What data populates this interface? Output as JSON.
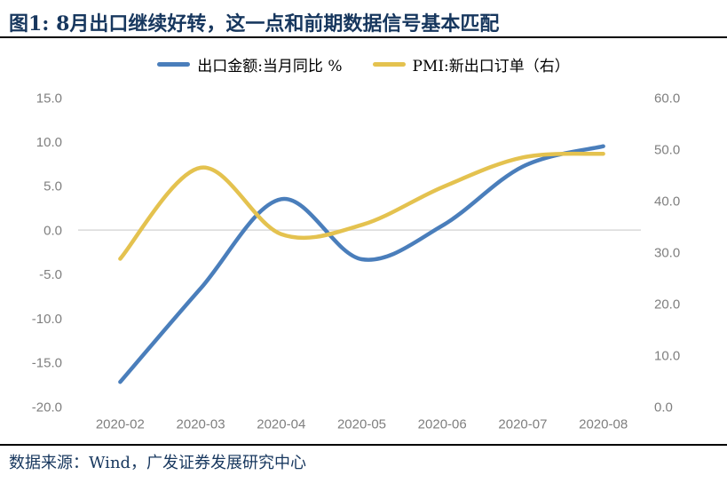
{
  "chart_data": {
    "type": "line",
    "title": "图1: 8月出口继续好转，这一点和前期数据信号基本匹配",
    "categories": [
      "2020-02",
      "2020-03",
      "2020-04",
      "2020-05",
      "2020-06",
      "2020-07",
      "2020-08"
    ],
    "series": [
      {
        "name": "出口金额:当月同比 %",
        "axis": "left",
        "color": "#4A7EBB",
        "values": [
          -17.2,
          -6.6,
          3.5,
          -3.3,
          0.5,
          7.2,
          9.5
        ]
      },
      {
        "name": "PMI:新出口订单（右）",
        "axis": "right",
        "color": "#E4C24F",
        "values": [
          28.7,
          46.4,
          33.5,
          35.3,
          42.6,
          48.4,
          49.1
        ]
      }
    ],
    "left_axis": {
      "min": -20,
      "max": 15,
      "ticks": [
        15,
        10,
        5,
        0,
        -5,
        -10,
        -15,
        -20
      ],
      "decimals": 1
    },
    "right_axis": {
      "min": 0,
      "max": 60,
      "ticks": [
        60,
        50,
        40,
        30,
        20,
        10,
        0
      ],
      "decimals": 1
    },
    "gridlines": "zero-only",
    "legend_position": "top",
    "smoothed": true
  },
  "footer": "数据来源：Wind，广发证券发展研究中心",
  "colors": {
    "title_text": "#17375E",
    "footer_text": "#17375E",
    "divider": "#000000",
    "axis_text": "#7F7F7F",
    "zero_gridline": "#D9D9D9",
    "background": "#FFFFFF"
  }
}
